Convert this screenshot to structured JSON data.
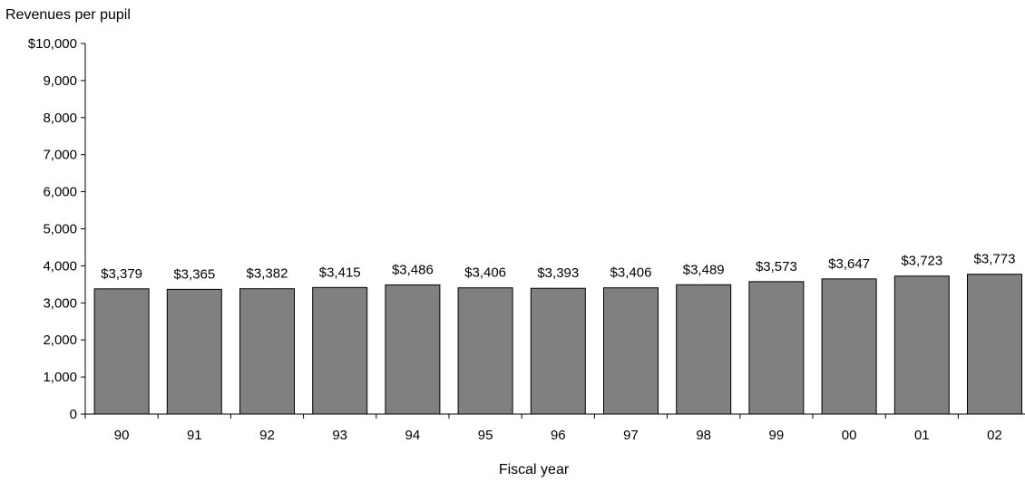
{
  "chart_data": {
    "type": "bar",
    "ylabel": "Revenues per pupil",
    "xlabel": "Fiscal year",
    "categories": [
      "90",
      "91",
      "92",
      "93",
      "94",
      "95",
      "96",
      "97",
      "98",
      "99",
      "00",
      "01",
      "02"
    ],
    "values": [
      3379,
      3365,
      3382,
      3415,
      3486,
      3406,
      3393,
      3406,
      3489,
      3573,
      3647,
      3723,
      3773
    ],
    "value_labels": [
      "$3,379",
      "$3,365",
      "$3,382",
      "$3,415",
      "$3,486",
      "$3,406",
      "$3,393",
      "$3,406",
      "$3,489",
      "$3,573",
      "$3,647",
      "$3,723",
      "$3,773"
    ],
    "ylim": [
      0,
      10000
    ],
    "yticks": [
      0,
      1000,
      2000,
      3000,
      4000,
      5000,
      6000,
      7000,
      8000,
      9000,
      10000
    ],
    "ytick_labels": [
      "0",
      "1,000",
      "2,000",
      "3,000",
      "4,000",
      "5,000",
      "6,000",
      "7,000",
      "8,000",
      "9,000",
      "$10,000"
    ],
    "bar_color": "#808080",
    "bar_edge_color": "#000000",
    "grid": false
  }
}
